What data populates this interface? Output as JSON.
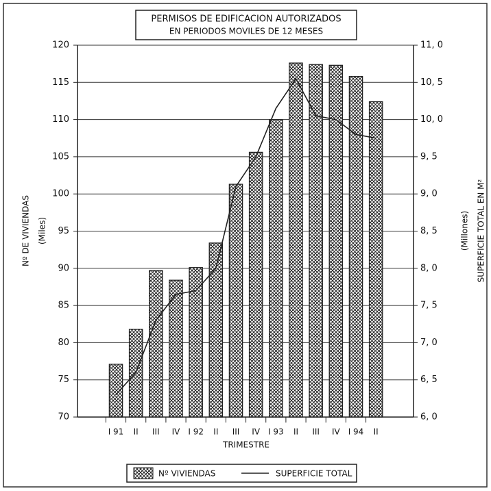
{
  "chart_data": {
    "type": "bar_line",
    "title": "PERMISOS DE EDIFICACION AUTORIZADOS",
    "subtitle": "EN PERIODOS MOVILES DE 12 MESES",
    "xlabel": "TRIMESTRE",
    "ylabel": "Nº DE VIVIENDAS",
    "ylabel_sub": "(Miles)",
    "y2label": "SUPERFICIE TOTAL EN M²",
    "y2label_sub": "(Millones)",
    "categories": [
      "I 91",
      "II",
      "III",
      "IV",
      "I 92",
      "II",
      "III",
      "IV",
      "I 93",
      "II",
      "III",
      "IV",
      "I 94",
      "II"
    ],
    "series": [
      {
        "name": "Nº VIVIENDAS",
        "type": "bar",
        "color": "#222222",
        "values": [
          77.1,
          81.8,
          89.7,
          88.4,
          90.1,
          93.4,
          101.3,
          105.6,
          110.0,
          117.6,
          117.4,
          117.3,
          115.8,
          112.4
        ]
      },
      {
        "name": "SUPERFICIE TOTAL",
        "type": "line",
        "axis": "y2",
        "color": "#222222",
        "values": [
          6.3,
          6.6,
          7.3,
          7.65,
          7.7,
          8.0,
          9.1,
          9.5,
          10.15,
          10.55,
          10.05,
          10.0,
          9.8,
          9.75
        ]
      }
    ],
    "ylim": [
      70,
      120
    ],
    "yticks": [
      70,
      75,
      80,
      85,
      90,
      95,
      100,
      105,
      110,
      115,
      120
    ],
    "y2lim": [
      6,
      11
    ],
    "y2ticks": [
      {
        "value": 6,
        "label": "6, 0"
      },
      {
        "value": 6.5,
        "label": "6, 5"
      },
      {
        "value": 7,
        "label": "7, 0"
      },
      {
        "value": 7.5,
        "label": "7, 5"
      },
      {
        "value": 8,
        "label": "8, 0"
      },
      {
        "value": 8.5,
        "label": "8, 5"
      },
      {
        "value": 9,
        "label": "9, 0"
      },
      {
        "value": 9.5,
        "label": "9, 5"
      },
      {
        "value": 10,
        "label": "10, 0"
      },
      {
        "value": 10.5,
        "label": "10, 5"
      },
      {
        "value": 11,
        "label": "11, 0"
      }
    ],
    "grid": true,
    "legend": "bottom"
  }
}
